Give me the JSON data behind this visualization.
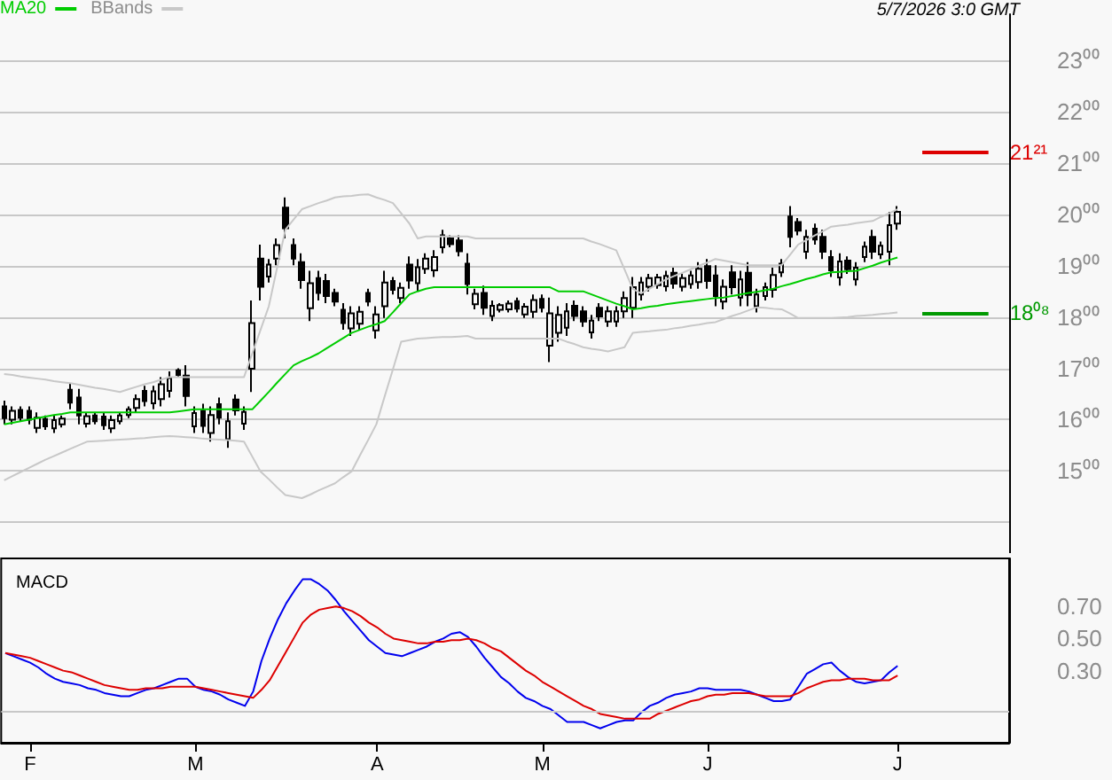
{
  "chart_data": [
    {
      "type": "candlestick",
      "legend": "top left",
      "grid": "y",
      "tick_labels": "y",
      "marker": "none",
      "annotations": [
        "5/7/2026 3:0 GMT"
      ],
      "categories": [
        null,
        null,
        null,
        null,
        null,
        null,
        null,
        null,
        null,
        null,
        null,
        null,
        null,
        null,
        null,
        null,
        null,
        null,
        null,
        null,
        null,
        null,
        null,
        null,
        null,
        null,
        null,
        null,
        null,
        null,
        null,
        null,
        null,
        null,
        null,
        null,
        null,
        null,
        null,
        null,
        null,
        null,
        null,
        null,
        null,
        null,
        null,
        null,
        null,
        null,
        null,
        null,
        null,
        null,
        null,
        null,
        null,
        null,
        null,
        null,
        null,
        null,
        null,
        null,
        null,
        null,
        null,
        null,
        null,
        null,
        null,
        null,
        null,
        null,
        null,
        null,
        null,
        null,
        null,
        null,
        null,
        null,
        null,
        null,
        null,
        null,
        null,
        null,
        null,
        null,
        null,
        null,
        null,
        null,
        null,
        null,
        null,
        null,
        null,
        null,
        null,
        null,
        null,
        null,
        null,
        null,
        null,
        null,
        null,
        null,
        null,
        null,
        null,
        null,
        null,
        null,
        null,
        null,
        null,
        null,
        null,
        null
      ],
      "ylim": [
        13.4,
        23.9
      ],
      "yticks": [
        {
          "value": 14,
          "label": null
        },
        {
          "value": 15,
          "label": "15⁰⁰"
        },
        {
          "value": 16,
          "label": "16⁰⁰"
        },
        {
          "value": 17,
          "label": "17⁰⁰"
        },
        {
          "value": 18,
          "label": "18⁰⁰"
        },
        {
          "value": 19,
          "label": "19⁰⁰"
        },
        {
          "value": 20,
          "label": "20⁰⁰"
        },
        {
          "value": 21,
          "label": "21⁰⁰"
        },
        {
          "value": 22,
          "label": "22⁰⁰"
        },
        {
          "value": 23,
          "label": "23⁰⁰"
        }
      ],
      "ref_lines": [
        {
          "axis": "y",
          "value": 21.21,
          "label": "21²¹",
          "color": "#dd0000"
        },
        {
          "axis": "y",
          "value": 18.08,
          "label": "18⁰⁸",
          "color": "#009900"
        }
      ],
      "series": [
        {
          "type": "candlestick",
          "color": "#000000",
          "ohlc": [
            [
              16.26,
              16.37,
              15.91,
              16.03
            ],
            [
              16.0,
              16.26,
              15.91,
              16.17
            ],
            [
              16.19,
              16.26,
              15.97,
              16.04
            ],
            [
              16.17,
              16.26,
              15.91,
              16.0
            ],
            [
              15.84,
              16.14,
              15.74,
              16.04
            ],
            [
              16.01,
              16.08,
              15.8,
              15.87
            ],
            [
              15.83,
              16.08,
              15.74,
              15.99
            ],
            [
              15.91,
              16.08,
              15.85,
              16.02
            ],
            [
              16.58,
              16.71,
              16.2,
              16.33
            ],
            [
              16.43,
              16.6,
              15.91,
              16.08
            ],
            [
              15.92,
              16.14,
              15.85,
              16.07
            ],
            [
              16.08,
              16.14,
              15.91,
              15.97
            ],
            [
              16.06,
              16.14,
              15.8,
              15.89
            ],
            [
              15.83,
              16.08,
              15.74,
              15.99
            ],
            [
              15.97,
              16.14,
              15.91,
              16.08
            ],
            [
              16.09,
              16.26,
              16.03,
              16.2
            ],
            [
              16.23,
              16.49,
              16.14,
              16.4
            ],
            [
              16.56,
              16.66,
              16.26,
              16.36
            ],
            [
              16.32,
              16.66,
              16.2,
              16.55
            ],
            [
              16.4,
              16.83,
              16.26,
              16.69
            ],
            [
              16.56,
              16.94,
              16.43,
              16.81
            ],
            [
              16.96,
              17.0,
              16.83,
              16.87
            ],
            [
              16.86,
              17.06,
              16.26,
              16.46
            ],
            [
              15.87,
              16.26,
              15.74,
              16.13
            ],
            [
              16.17,
              16.31,
              15.74,
              15.88
            ],
            [
              15.74,
              16.26,
              15.57,
              16.09
            ],
            [
              16.3,
              16.43,
              15.91,
              16.04
            ],
            [
              15.62,
              16.14,
              15.45,
              15.97
            ],
            [
              16.39,
              16.49,
              16.08,
              16.18
            ],
            [
              15.92,
              16.26,
              15.8,
              16.15
            ],
            [
              16.99,
              18.32,
              16.54,
              17.88
            ],
            [
              19.14,
              19.41,
              18.32,
              18.59
            ],
            [
              18.79,
              19.13,
              18.67,
              19.02
            ],
            [
              19.14,
              19.53,
              19.01,
              19.4
            ],
            [
              20.13,
              20.33,
              19.53,
              19.73
            ],
            [
              19.4,
              19.53,
              19.01,
              19.14
            ],
            [
              19.07,
              19.24,
              18.55,
              18.72
            ],
            [
              18.17,
              18.9,
              17.92,
              18.66
            ],
            [
              18.76,
              18.9,
              18.32,
              18.47
            ],
            [
              18.7,
              18.84,
              18.27,
              18.41
            ],
            [
              18.47,
              18.55,
              18.21,
              18.3
            ],
            [
              18.14,
              18.27,
              17.75,
              17.88
            ],
            [
              17.78,
              18.21,
              17.63,
              18.07
            ],
            [
              17.87,
              18.21,
              17.75,
              18.1
            ],
            [
              18.47,
              18.55,
              18.21,
              18.3
            ],
            [
              17.74,
              18.21,
              17.58,
              18.05
            ],
            [
              18.21,
              18.9,
              17.98,
              18.67
            ],
            [
              18.7,
              18.78,
              18.44,
              18.53
            ],
            [
              18.37,
              18.67,
              18.27,
              18.57
            ],
            [
              19.02,
              19.18,
              18.55,
              18.71
            ],
            [
              18.66,
              19.13,
              18.5,
              18.97
            ],
            [
              18.94,
              19.24,
              18.84,
              19.14
            ],
            [
              18.91,
              19.3,
              18.78,
              19.17
            ],
            [
              19.36,
              19.7,
              19.24,
              19.59
            ],
            [
              19.53,
              19.59,
              19.36,
              19.42
            ],
            [
              19.49,
              19.59,
              19.18,
              19.28
            ],
            [
              19.04,
              19.24,
              18.44,
              18.64
            ],
            [
              18.25,
              18.55,
              18.15,
              18.45
            ],
            [
              18.47,
              18.61,
              18.04,
              18.18
            ],
            [
              18.02,
              18.32,
              17.92,
              18.22
            ],
            [
              18.14,
              18.27,
              18.09,
              18.23
            ],
            [
              18.15,
              18.32,
              18.09,
              18.26
            ],
            [
              18.31,
              18.38,
              18.09,
              18.16
            ],
            [
              18.05,
              18.27,
              17.98,
              18.2
            ],
            [
              18.1,
              18.44,
              17.98,
              18.33
            ],
            [
              18.35,
              18.44,
              18.09,
              18.18
            ],
            [
              17.44,
              18.38,
              17.12,
              18.07
            ],
            [
              17.69,
              18.21,
              17.52,
              18.04
            ],
            [
              17.79,
              18.27,
              17.63,
              18.11
            ],
            [
              18.22,
              18.32,
              17.92,
              18.02
            ],
            [
              18.11,
              18.21,
              17.81,
              17.91
            ],
            [
              17.7,
              18.04,
              17.58,
              17.93
            ],
            [
              18.18,
              18.27,
              17.92,
              18.01
            ],
            [
              17.91,
              18.21,
              17.81,
              18.11
            ],
            [
              17.91,
              18.21,
              17.81,
              18.11
            ],
            [
              18.11,
              18.5,
              17.98,
              18.37
            ],
            [
              18.18,
              18.78,
              17.98,
              18.58
            ],
            [
              18.44,
              18.78,
              18.32,
              18.67
            ],
            [
              18.59,
              18.84,
              18.5,
              18.76
            ],
            [
              18.62,
              18.84,
              18.55,
              18.77
            ],
            [
              18.6,
              18.9,
              18.5,
              18.8
            ],
            [
              18.86,
              18.96,
              18.55,
              18.65
            ],
            [
              18.59,
              18.84,
              18.5,
              18.76
            ],
            [
              18.64,
              18.9,
              18.55,
              18.81
            ],
            [
              18.68,
              19.07,
              18.55,
              18.94
            ],
            [
              18.99,
              19.13,
              18.55,
              18.7
            ],
            [
              18.81,
              19.01,
              18.21,
              18.41
            ],
            [
              18.3,
              18.73,
              18.15,
              18.59
            ],
            [
              18.87,
              19.01,
              18.44,
              18.58
            ],
            [
              18.38,
              18.9,
              18.21,
              18.73
            ],
            [
              18.86,
              19.07,
              18.21,
              18.43
            ],
            [
              18.21,
              18.55,
              18.09,
              18.44
            ],
            [
              18.41,
              18.67,
              18.32,
              18.58
            ],
            [
              18.53,
              18.96,
              18.38,
              18.82
            ],
            [
              18.87,
              19.13,
              18.78,
              19.04
            ],
            [
              19.96,
              20.16,
              19.36,
              19.56
            ],
            [
              19.85,
              19.93,
              19.59,
              19.68
            ],
            [
              19.27,
              19.7,
              19.13,
              19.56
            ],
            [
              19.72,
              19.82,
              19.41,
              19.51
            ],
            [
              19.56,
              19.7,
              19.13,
              19.27
            ],
            [
              19.17,
              19.3,
              18.78,
              18.91
            ],
            [
              18.77,
              19.24,
              18.61,
              19.08
            ],
            [
              19.1,
              19.18,
              18.84,
              18.93
            ],
            [
              18.73,
              19.07,
              18.61,
              18.96
            ],
            [
              19.17,
              19.47,
              19.07,
              19.37
            ],
            [
              19.56,
              19.7,
              19.13,
              19.27
            ],
            [
              19.22,
              19.47,
              19.13,
              19.39
            ],
            [
              19.27,
              20.05,
              19.01,
              19.79
            ],
            [
              19.82,
              20.16,
              19.7,
              20.05
            ],
            null,
            null,
            null,
            null,
            null,
            null,
            null,
            null,
            null,
            null,
            null,
            null,
            null
          ]
        },
        {
          "type": "line",
          "name": "MA20",
          "color": "#00cc00",
          "values": [
            15.91,
            15.94,
            15.97,
            16.0,
            16.03,
            16.06,
            16.09,
            16.11,
            16.14,
            16.14,
            16.14,
            16.14,
            16.14,
            16.14,
            16.14,
            16.14,
            16.14,
            16.14,
            16.14,
            16.14,
            16.14,
            16.16,
            16.18,
            16.2,
            16.2,
            16.2,
            16.2,
            16.2,
            16.2,
            16.2,
            16.2,
            16.37,
            16.54,
            16.72,
            16.89,
            17.06,
            17.14,
            17.21,
            17.29,
            17.39,
            17.49,
            17.59,
            17.69,
            17.75,
            17.81,
            17.86,
            17.92,
            18.09,
            18.27,
            18.44,
            18.5,
            18.55,
            18.58,
            18.58,
            18.58,
            18.58,
            18.58,
            18.58,
            18.58,
            18.58,
            18.58,
            18.58,
            18.58,
            18.58,
            18.58,
            18.58,
            18.58,
            18.5,
            18.5,
            18.5,
            18.5,
            18.44,
            18.38,
            18.32,
            18.26,
            18.21,
            18.15,
            18.17,
            18.2,
            18.22,
            18.25,
            18.27,
            18.29,
            18.31,
            18.33,
            18.35,
            18.37,
            18.38,
            18.41,
            18.44,
            18.47,
            18.49,
            18.52,
            18.55,
            18.6,
            18.64,
            18.69,
            18.74,
            18.78,
            18.83,
            18.87,
            18.88,
            18.89,
            18.9,
            18.95,
            19.0,
            19.06,
            19.11,
            19.16,
            null,
            null,
            null,
            null,
            null,
            null,
            null,
            null,
            null,
            null,
            null,
            null,
            null
          ]
        },
        {
          "type": "line",
          "name": "BBands",
          "color": "#c8c8c8",
          "values": [
            16.89,
            16.87,
            16.84,
            16.82,
            16.8,
            16.78,
            16.75,
            16.73,
            16.71,
            16.68,
            16.65,
            16.62,
            16.6,
            16.57,
            16.54,
            16.59,
            16.64,
            16.69,
            16.73,
            16.78,
            16.83,
            16.83,
            16.83,
            16.83,
            16.83,
            16.83,
            16.83,
            16.83,
            16.83,
            16.83,
            17.29,
            17.75,
            18.21,
            18.96,
            19.7,
            19.9,
            20.1,
            20.16,
            20.22,
            20.27,
            20.33,
            20.35,
            20.36,
            20.38,
            20.39,
            20.33,
            20.28,
            20.22,
            20.02,
            19.82,
            19.53,
            19.57,
            19.57,
            19.57,
            19.57,
            19.57,
            19.57,
            19.53,
            19.53,
            19.53,
            19.53,
            19.53,
            19.53,
            19.53,
            19.53,
            19.53,
            19.53,
            19.53,
            19.53,
            19.53,
            19.53,
            19.47,
            19.42,
            19.36,
            19.3,
            18.93,
            18.55,
            18.46,
            18.55,
            18.64,
            18.73,
            18.8,
            18.86,
            18.93,
            19.0,
            19.06,
            19.13,
            19.1,
            19.07,
            19.04,
            19.01,
            19.01,
            19.01,
            19.01,
            19.01,
            19.21,
            19.41,
            19.5,
            19.59,
            19.67,
            19.76,
            19.78,
            19.8,
            19.83,
            19.85,
            19.87,
            19.95,
            20.02,
            20.1,
            null,
            null,
            null,
            null,
            null,
            null,
            null,
            null,
            null,
            null,
            null,
            null,
            null
          ]
        },
        {
          "type": "line",
          "color": "#c8c8c8",
          "values": [
            14.82,
            14.9,
            14.98,
            15.06,
            15.14,
            15.22,
            15.29,
            15.36,
            15.43,
            15.5,
            15.57,
            15.58,
            15.59,
            15.6,
            15.61,
            15.62,
            15.63,
            15.64,
            15.66,
            15.67,
            15.68,
            15.67,
            15.66,
            15.65,
            15.63,
            15.62,
            15.61,
            15.6,
            15.59,
            15.57,
            15.28,
            14.99,
            14.84,
            14.68,
            14.53,
            14.5,
            14.47,
            14.54,
            14.62,
            14.69,
            14.76,
            14.88,
            14.99,
            15.3,
            15.6,
            15.91,
            16.45,
            16.98,
            17.52,
            17.55,
            17.58,
            17.59,
            17.6,
            17.61,
            17.61,
            17.62,
            17.63,
            17.58,
            17.58,
            17.58,
            17.58,
            17.58,
            17.58,
            17.58,
            17.58,
            17.58,
            17.58,
            17.58,
            17.52,
            17.47,
            17.41,
            17.38,
            17.36,
            17.33,
            17.37,
            17.41,
            17.69,
            17.71,
            17.72,
            17.74,
            17.75,
            17.78,
            17.8,
            17.83,
            17.85,
            17.88,
            17.9,
            17.96,
            18.02,
            18.07,
            18.13,
            18.19,
            18.18,
            18.16,
            18.15,
            18.07,
            17.98,
            17.98,
            17.98,
            17.98,
            17.98,
            17.99,
            18.0,
            18.02,
            18.03,
            18.04,
            18.06,
            18.07,
            18.09,
            null,
            null,
            null,
            null,
            null,
            null,
            null,
            null,
            null,
            null,
            null,
            null,
            null
          ]
        }
      ]
    },
    {
      "type": "line",
      "title": "MACD",
      "marker": "none",
      "categories": [
        null,
        null,
        null,
        "F",
        null,
        null,
        null,
        null,
        null,
        null,
        null,
        null,
        null,
        null,
        null,
        null,
        null,
        null,
        null,
        null,
        null,
        null,
        null,
        "M",
        null,
        null,
        null,
        null,
        null,
        null,
        null,
        null,
        null,
        null,
        null,
        null,
        null,
        null,
        null,
        null,
        null,
        null,
        null,
        null,
        null,
        "A",
        null,
        null,
        null,
        null,
        null,
        null,
        null,
        null,
        null,
        null,
        null,
        null,
        null,
        null,
        null,
        null,
        null,
        null,
        null,
        "M",
        null,
        null,
        null,
        null,
        null,
        null,
        null,
        null,
        null,
        null,
        null,
        null,
        null,
        null,
        null,
        null,
        null,
        null,
        null,
        "J",
        null,
        null,
        null,
        null,
        null,
        null,
        null,
        null,
        null,
        null,
        null,
        null,
        null,
        null,
        null,
        null,
        null,
        null,
        null,
        null,
        null,
        null,
        "J",
        null,
        null,
        null,
        null,
        null,
        null,
        null,
        null,
        null,
        null,
        null,
        null,
        null
      ],
      "ylim": [
        -0.15,
        1.0
      ],
      "yticks": [
        {
          "value": 0.3,
          "label": "0.30"
        },
        {
          "value": 0.5,
          "label": "0.50"
        },
        {
          "value": 0.7,
          "label": "0.70"
        }
      ],
      "ref_lines": [
        {
          "axis": "y",
          "value": 0.05,
          "color": "#c8c8c8"
        }
      ],
      "series": [
        {
          "color": "#0000ee",
          "values": [
            0.41,
            0.39,
            0.37,
            0.35,
            0.32,
            0.28,
            0.25,
            0.23,
            0.22,
            0.21,
            0.19,
            0.18,
            0.16,
            0.15,
            0.14,
            0.14,
            0.16,
            0.18,
            0.19,
            0.21,
            0.23,
            0.25,
            0.25,
            0.2,
            0.18,
            0.17,
            0.15,
            0.12,
            0.1,
            0.08,
            0.17,
            0.36,
            0.5,
            0.62,
            0.72,
            0.8,
            0.87,
            0.87,
            0.84,
            0.8,
            0.74,
            0.67,
            0.61,
            0.55,
            0.49,
            0.45,
            0.41,
            0.4,
            0.39,
            0.41,
            0.43,
            0.45,
            0.48,
            0.5,
            0.53,
            0.54,
            0.51,
            0.45,
            0.38,
            0.32,
            0.26,
            0.22,
            0.17,
            0.13,
            0.11,
            0.08,
            0.06,
            0.02,
            -0.02,
            -0.02,
            -0.02,
            -0.04,
            -0.06,
            -0.04,
            -0.02,
            -0.01,
            -0.01,
            0.04,
            0.08,
            0.1,
            0.13,
            0.15,
            0.16,
            0.17,
            0.19,
            0.19,
            0.18,
            0.18,
            0.18,
            0.18,
            0.17,
            0.15,
            0.13,
            0.11,
            0.11,
            0.12,
            0.2,
            0.28,
            0.31,
            0.34,
            0.35,
            0.3,
            0.26,
            0.23,
            0.22,
            0.23,
            0.24,
            0.29,
            0.33,
            null,
            null,
            null,
            null,
            null,
            null,
            null,
            null,
            null,
            null,
            null,
            null,
            null
          ]
        },
        {
          "color": "#dd0000",
          "values": [
            0.41,
            0.4,
            0.39,
            0.38,
            0.36,
            0.34,
            0.32,
            0.3,
            0.29,
            0.27,
            0.25,
            0.23,
            0.21,
            0.2,
            0.19,
            0.18,
            0.18,
            0.19,
            0.19,
            0.19,
            0.2,
            0.2,
            0.2,
            0.2,
            0.19,
            0.18,
            0.17,
            0.16,
            0.15,
            0.14,
            0.13,
            0.18,
            0.24,
            0.33,
            0.42,
            0.51,
            0.6,
            0.65,
            0.68,
            0.69,
            0.7,
            0.69,
            0.67,
            0.64,
            0.6,
            0.57,
            0.53,
            0.5,
            0.49,
            0.48,
            0.47,
            0.47,
            0.48,
            0.48,
            0.49,
            0.49,
            0.5,
            0.49,
            0.47,
            0.44,
            0.42,
            0.38,
            0.34,
            0.3,
            0.27,
            0.23,
            0.2,
            0.17,
            0.14,
            0.11,
            0.08,
            0.06,
            0.03,
            0.02,
            0.01,
            0,
            0,
            0,
            0,
            0.03,
            0.05,
            0.07,
            0.09,
            0.11,
            0.12,
            0.14,
            0.15,
            0.15,
            0.16,
            0.16,
            0.16,
            0.15,
            0.14,
            0.14,
            0.14,
            0.14,
            0.16,
            0.19,
            0.21,
            0.23,
            0.24,
            0.24,
            0.25,
            0.25,
            0.25,
            0.24,
            0.24,
            0.24,
            0.27,
            null,
            null,
            null,
            null,
            null,
            null,
            null,
            null,
            null,
            null,
            null,
            null,
            null
          ]
        }
      ]
    }
  ]
}
